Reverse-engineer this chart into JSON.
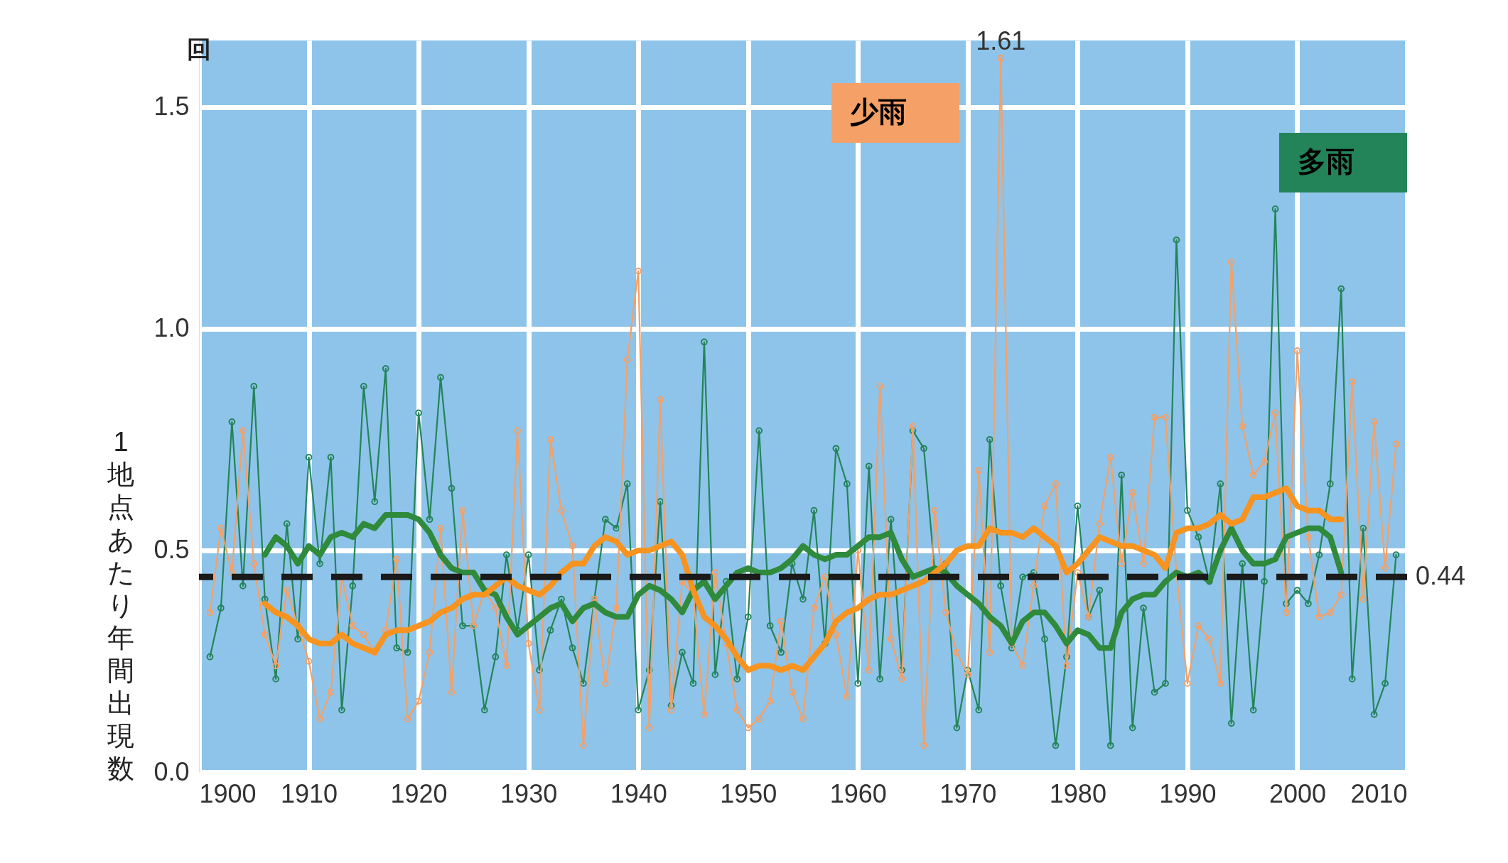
{
  "chart_data": {
    "type": "line",
    "ylabel": "1地点あたり年間出現数",
    "annotations": [
      "回",
      {
        "text": "1.61",
        "x": 1973,
        "y": 1.61
      }
    ],
    "x": [
      1901,
      1902,
      1903,
      1904,
      1905,
      1906,
      1907,
      1908,
      1909,
      1910,
      1911,
      1912,
      1913,
      1914,
      1915,
      1916,
      1917,
      1918,
      1919,
      1920,
      1921,
      1922,
      1923,
      1924,
      1925,
      1926,
      1927,
      1928,
      1929,
      1930,
      1931,
      1932,
      1933,
      1934,
      1935,
      1936,
      1937,
      1938,
      1939,
      1940,
      1941,
      1942,
      1943,
      1944,
      1945,
      1946,
      1947,
      1948,
      1949,
      1950,
      1951,
      1952,
      1953,
      1954,
      1955,
      1956,
      1957,
      1958,
      1959,
      1960,
      1961,
      1962,
      1963,
      1964,
      1965,
      1966,
      1967,
      1968,
      1969,
      1970,
      1971,
      1972,
      1973,
      1974,
      1975,
      1976,
      1977,
      1978,
      1979,
      1980,
      1981,
      1982,
      1983,
      1984,
      1985,
      1986,
      1987,
      1988,
      1989,
      1990,
      1991,
      1992,
      1993,
      1994,
      1995,
      1996,
      1997,
      1998,
      1999,
      2000,
      2001,
      2002,
      2003,
      2004,
      2005,
      2006,
      2007,
      2008,
      2009
    ],
    "series": [
      {
        "name": "多雨",
        "color": "#23845a",
        "values": [
          0.26,
          0.37,
          0.79,
          0.42,
          0.87,
          0.39,
          0.21,
          0.56,
          0.3,
          0.71,
          0.47,
          0.71,
          0.14,
          0.42,
          0.87,
          0.61,
          0.91,
          0.28,
          0.27,
          0.81,
          0.57,
          0.89,
          0.64,
          0.33,
          0.33,
          0.14,
          0.26,
          0.49,
          0.32,
          0.49,
          0.23,
          0.32,
          0.39,
          0.28,
          0.2,
          0.39,
          0.57,
          0.55,
          0.65,
          0.14,
          0.23,
          0.61,
          0.15,
          0.27,
          0.2,
          0.97,
          0.22,
          0.43,
          0.21,
          0.35,
          0.77,
          0.33,
          0.27,
          0.47,
          0.39,
          0.59,
          0.29,
          0.73,
          0.65,
          0.2,
          0.69,
          0.21,
          0.57,
          0.23,
          0.77,
          0.73,
          0.45,
          0.47,
          0.1,
          0.23,
          0.14,
          0.75,
          0.42,
          0.28,
          0.44,
          0.45,
          0.3,
          0.06,
          0.26,
          0.6,
          0.35,
          0.41,
          0.06,
          0.67,
          0.1,
          0.37,
          0.18,
          0.2,
          1.2,
          0.59,
          0.53,
          0.43,
          0.65,
          0.11,
          0.47,
          0.14,
          0.43,
          1.27,
          0.38,
          0.41,
          0.38,
          0.49,
          0.65,
          1.09,
          0.21,
          0.55,
          0.13,
          0.2,
          0.49
        ]
      },
      {
        "name": "少雨",
        "color": "#f4a066",
        "values": [
          0.36,
          0.55,
          0.45,
          0.77,
          0.47,
          0.31,
          0.24,
          0.41,
          0.33,
          0.25,
          0.12,
          0.18,
          0.44,
          0.33,
          0.31,
          0.27,
          0.32,
          0.48,
          0.12,
          0.16,
          0.27,
          0.55,
          0.18,
          0.59,
          0.33,
          0.41,
          0.37,
          0.24,
          0.77,
          0.29,
          0.14,
          0.75,
          0.59,
          0.51,
          0.06,
          0.39,
          0.2,
          0.37,
          0.93,
          1.13,
          0.1,
          0.84,
          0.14,
          0.43,
          0.4,
          0.13,
          0.45,
          0.29,
          0.14,
          0.1,
          0.12,
          0.16,
          0.34,
          0.18,
          0.12,
          0.37,
          0.44,
          0.31,
          0.17,
          0.5,
          0.23,
          0.87,
          0.3,
          0.21,
          0.78,
          0.06,
          0.59,
          0.36,
          0.27,
          0.22,
          0.68,
          0.27,
          1.61,
          0.29,
          0.24,
          0.42,
          0.6,
          0.65,
          0.24,
          0.45,
          0.35,
          0.56,
          0.71,
          0.47,
          0.63,
          0.47,
          0.8,
          0.8,
          0.45,
          0.2,
          0.33,
          0.3,
          0.2,
          1.15,
          0.78,
          0.67,
          0.7,
          0.81,
          0.36,
          0.95,
          0.53,
          0.35,
          0.36,
          0.4,
          0.88,
          0.39,
          0.79,
          0.46,
          0.74
        ]
      },
      {
        "color": "#2f8a3c",
        "marker": "none",
        "x": [
          1906,
          1907,
          1908,
          1909,
          1910,
          1911,
          1912,
          1913,
          1914,
          1915,
          1916,
          1917,
          1918,
          1919,
          1920,
          1921,
          1922,
          1923,
          1924,
          1925,
          1926,
          1927,
          1928,
          1929,
          1930,
          1931,
          1932,
          1933,
          1934,
          1935,
          1936,
          1937,
          1938,
          1939,
          1940,
          1941,
          1942,
          1943,
          1944,
          1945,
          1946,
          1947,
          1948,
          1949,
          1950,
          1951,
          1952,
          1953,
          1954,
          1955,
          1956,
          1957,
          1958,
          1959,
          1960,
          1961,
          1962,
          1963,
          1964,
          1965,
          1966,
          1967,
          1968,
          1969,
          1970,
          1971,
          1972,
          1973,
          1974,
          1975,
          1976,
          1977,
          1978,
          1979,
          1980,
          1981,
          1982,
          1983,
          1984,
          1985,
          1986,
          1987,
          1988,
          1989,
          1990,
          1991,
          1992,
          1993,
          1994,
          1995,
          1996,
          1997,
          1998,
          1999,
          2000,
          2001,
          2002,
          2003,
          2004
        ],
        "values": [
          0.49,
          0.53,
          0.51,
          0.47,
          0.51,
          0.49,
          0.53,
          0.54,
          0.53,
          0.56,
          0.55,
          0.58,
          0.58,
          0.58,
          0.57,
          0.54,
          0.49,
          0.46,
          0.45,
          0.45,
          0.41,
          0.4,
          0.35,
          0.31,
          0.33,
          0.35,
          0.37,
          0.38,
          0.34,
          0.37,
          0.38,
          0.36,
          0.35,
          0.35,
          0.4,
          0.42,
          0.41,
          0.39,
          0.36,
          0.41,
          0.43,
          0.39,
          0.42,
          0.45,
          0.46,
          0.45,
          0.45,
          0.46,
          0.48,
          0.51,
          0.49,
          0.48,
          0.49,
          0.49,
          0.51,
          0.53,
          0.53,
          0.54,
          0.48,
          0.44,
          0.45,
          0.46,
          0.45,
          0.42,
          0.4,
          0.38,
          0.35,
          0.33,
          0.29,
          0.34,
          0.36,
          0.36,
          0.33,
          0.29,
          0.32,
          0.31,
          0.28,
          0.28,
          0.36,
          0.39,
          0.4,
          0.4,
          0.43,
          0.45,
          0.44,
          0.45,
          0.43,
          0.5,
          0.55,
          0.5,
          0.47,
          0.47,
          0.48,
          0.53,
          0.54,
          0.55,
          0.55,
          0.53,
          0.45
        ]
      },
      {
        "color": "#f7931e",
        "marker": "none",
        "x": [
          1906,
          1907,
          1908,
          1909,
          1910,
          1911,
          1912,
          1913,
          1914,
          1915,
          1916,
          1917,
          1918,
          1919,
          1920,
          1921,
          1922,
          1923,
          1924,
          1925,
          1926,
          1927,
          1928,
          1929,
          1930,
          1931,
          1932,
          1933,
          1934,
          1935,
          1936,
          1937,
          1938,
          1939,
          1940,
          1941,
          1942,
          1943,
          1944,
          1945,
          1946,
          1947,
          1948,
          1949,
          1950,
          1951,
          1952,
          1953,
          1954,
          1955,
          1956,
          1957,
          1958,
          1959,
          1960,
          1961,
          1962,
          1963,
          1964,
          1965,
          1966,
          1967,
          1968,
          1969,
          1970,
          1971,
          1972,
          1973,
          1974,
          1975,
          1976,
          1977,
          1978,
          1979,
          1980,
          1981,
          1982,
          1983,
          1984,
          1985,
          1986,
          1987,
          1988,
          1989,
          1990,
          1991,
          1992,
          1993,
          1994,
          1995,
          1996,
          1997,
          1998,
          1999,
          2000,
          2001,
          2002,
          2003,
          2004
        ],
        "values": [
          0.38,
          0.36,
          0.35,
          0.33,
          0.3,
          0.29,
          0.29,
          0.31,
          0.29,
          0.28,
          0.27,
          0.31,
          0.32,
          0.32,
          0.33,
          0.34,
          0.36,
          0.37,
          0.39,
          0.4,
          0.4,
          0.42,
          0.44,
          0.42,
          0.41,
          0.4,
          0.42,
          0.45,
          0.47,
          0.47,
          0.51,
          0.53,
          0.52,
          0.49,
          0.5,
          0.5,
          0.51,
          0.52,
          0.49,
          0.41,
          0.35,
          0.33,
          0.3,
          0.26,
          0.23,
          0.24,
          0.24,
          0.23,
          0.24,
          0.23,
          0.26,
          0.29,
          0.34,
          0.36,
          0.37,
          0.39,
          0.4,
          0.4,
          0.41,
          0.42,
          0.43,
          0.45,
          0.47,
          0.5,
          0.51,
          0.51,
          0.55,
          0.54,
          0.54,
          0.53,
          0.55,
          0.53,
          0.51,
          0.45,
          0.47,
          0.5,
          0.53,
          0.52,
          0.51,
          0.51,
          0.5,
          0.49,
          0.46,
          0.54,
          0.55,
          0.55,
          0.56,
          0.58,
          0.56,
          0.57,
          0.62,
          0.62,
          0.63,
          0.64,
          0.6,
          0.59,
          0.59,
          0.57,
          0.57
        ]
      }
    ],
    "ref_lines": [
      {
        "axis": "y",
        "value": 0.44,
        "label": "0.44",
        "color": "#1a1a1a",
        "line_style": "dashed"
      }
    ],
    "xlim": [
      1900,
      2010
    ],
    "xticks": [
      1900,
      1910,
      1920,
      1930,
      1940,
      1950,
      1960,
      1970,
      1980,
      1990,
      2000,
      2010
    ],
    "ylim": [
      0,
      1.65
    ],
    "yticks": [
      {
        "value": 0,
        "label": "0.0"
      },
      0.5,
      {
        "value": 1,
        "label": "1.0"
      },
      1.5
    ],
    "grid": true,
    "legend": "top right",
    "marker": "circle",
    "line_style": "solid"
  }
}
